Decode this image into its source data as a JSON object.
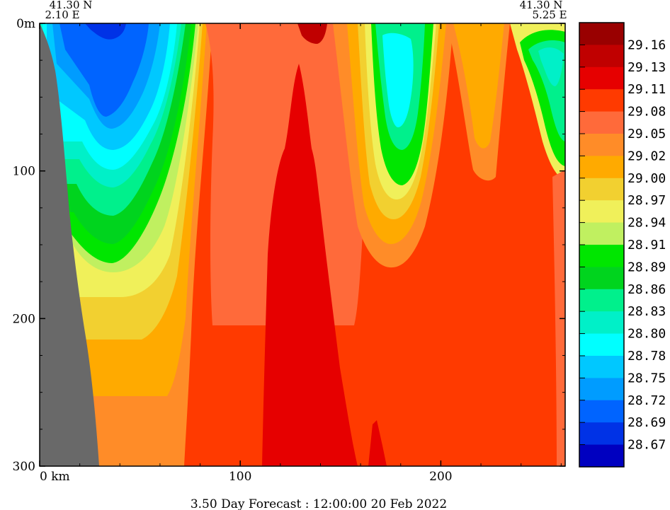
{
  "chart_data": {
    "type": "heatmap",
    "title": "3.50 Day Forecast : 12:00:00  20 Feb 2022",
    "corner_left": {
      "lat": "41.30 N",
      "lon": "2.10 E"
    },
    "corner_right": {
      "lat": "41.30 N",
      "lon": "5.25 E"
    },
    "x_axis": {
      "label": "km",
      "range": [
        0,
        262
      ],
      "ticks": [
        {
          "value": 0,
          "label": "0  km"
        },
        {
          "value": 100,
          "label": "100"
        },
        {
          "value": 200,
          "label": "200"
        }
      ]
    },
    "y_axis": {
      "range": [
        0,
        300
      ],
      "reversed": true,
      "ticks": [
        {
          "value": 0,
          "label": "0m"
        },
        {
          "value": 100,
          "label": "100"
        },
        {
          "value": 200,
          "label": "200"
        },
        {
          "value": 300,
          "label": "300"
        }
      ]
    },
    "colorbar": {
      "labels": [
        "29.16",
        "29.13",
        "29.11",
        "29.08",
        "29.05",
        "29.02",
        "29.00",
        "28.97",
        "28.94",
        "28.91",
        "28.89",
        "28.86",
        "28.83",
        "28.80",
        "28.78",
        "28.75",
        "28.72",
        "28.69",
        "28.67"
      ],
      "colors": [
        "#990000",
        "#c00000",
        "#e60000",
        "#ff3a00",
        "#ff6a3a",
        "#ff8c28",
        "#ffaa00",
        "#f2d030",
        "#f0f05a",
        "#c0f060",
        "#00e600",
        "#00d41e",
        "#00f08c",
        "#00f0c8",
        "#00ffff",
        "#00c8ff",
        "#009cff",
        "#0064ff",
        "#0032e6",
        "#0000c0"
      ]
    },
    "field_zones": [
      {
        "name": "seabed-land",
        "color": "#696969"
      },
      {
        "name": "shelf-cold-blue",
        "value": 28.69
      },
      {
        "name": "central-warm-core",
        "value": 29.11
      },
      {
        "name": "east-green-lens",
        "value": 28.83
      },
      {
        "name": "far-east-green-lens",
        "value": 28.86
      }
    ]
  }
}
